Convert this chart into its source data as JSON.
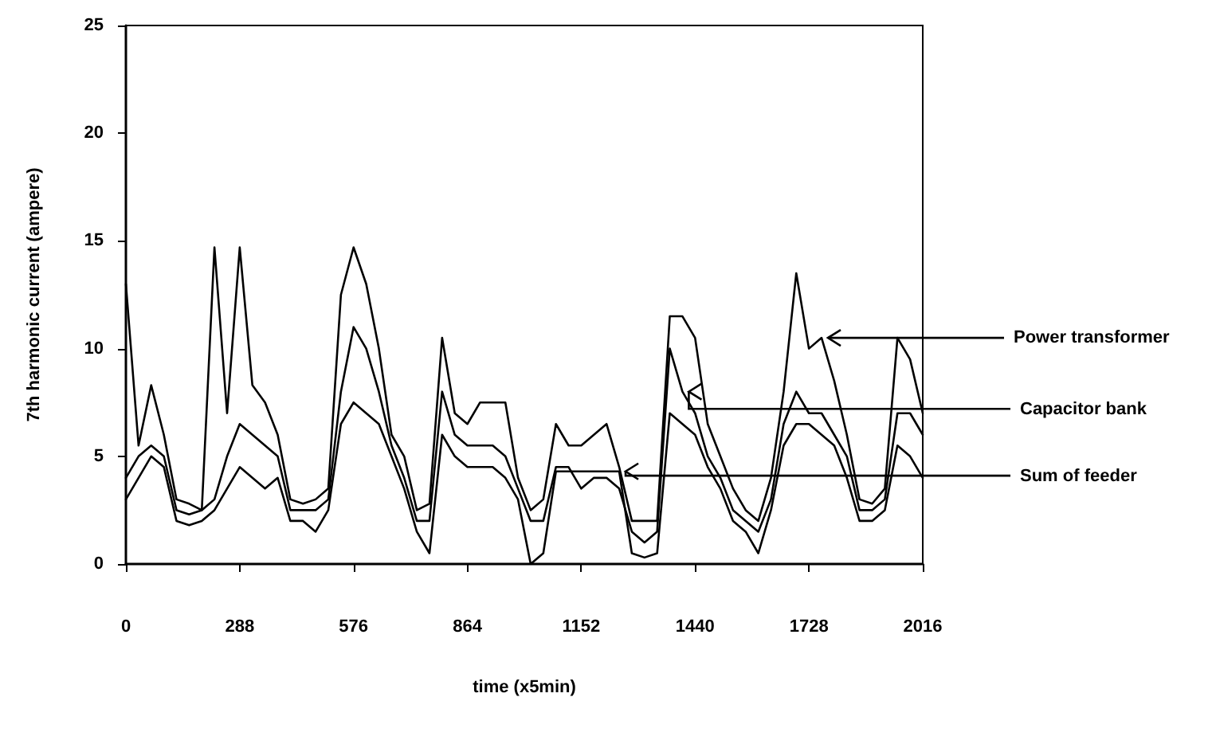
{
  "chart_data": {
    "type": "line",
    "xlabel": "time (x5min)",
    "ylabel": "7th harmonic current (ampere)",
    "xlim": [
      0,
      2016
    ],
    "xticks": [
      0,
      288,
      576,
      864,
      1152,
      1440,
      1728,
      2016
    ],
    "ylim": [
      0,
      25
    ],
    "yticks": [
      0,
      5,
      10,
      15,
      20,
      25
    ],
    "grid": false,
    "marker": "none",
    "x": [
      0,
      32,
      64,
      96,
      128,
      160,
      192,
      224,
      256,
      288,
      320,
      352,
      384,
      416,
      448,
      480,
      512,
      544,
      576,
      608,
      640,
      672,
      704,
      736,
      768,
      800,
      832,
      864,
      896,
      928,
      960,
      992,
      1024,
      1056,
      1088,
      1120,
      1152,
      1184,
      1216,
      1248,
      1280,
      1312,
      1344,
      1376,
      1408,
      1440,
      1472,
      1504,
      1536,
      1568,
      1600,
      1632,
      1664,
      1696,
      1728,
      1760,
      1792,
      1824,
      1856,
      1888,
      1920,
      1952,
      1984,
      2016
    ],
    "series": [
      {
        "name": "Power transformer",
        "color": "#000000",
        "values": [
          13,
          5.5,
          8.3,
          6,
          3,
          2.8,
          2.5,
          14.7,
          7,
          14.7,
          8.3,
          7.5,
          6,
          3,
          2.8,
          3,
          3.5,
          12.5,
          14.7,
          13,
          10,
          6,
          5,
          2.5,
          2.8,
          10.5,
          7,
          6.5,
          7.5,
          7.5,
          7.5,
          4,
          2.5,
          3,
          6.5,
          5.5,
          5.5,
          6,
          6.5,
          4.5,
          2,
          2,
          2,
          11.5,
          11.5,
          10.5,
          6.5,
          5,
          3.5,
          2.5,
          2,
          4,
          8,
          13.5,
          10,
          10.5,
          8.5,
          6,
          3,
          2.8,
          3.5,
          10.5,
          9.5,
          7
        ]
      },
      {
        "name": "Capacitor bank",
        "color": "#000000",
        "values": [
          4,
          5,
          5.5,
          5,
          2.5,
          2.3,
          2.5,
          3,
          5,
          6.5,
          6,
          5.5,
          5,
          2.5,
          2.5,
          2.5,
          3,
          8,
          11,
          10,
          8,
          5.5,
          4,
          2,
          2,
          8,
          6,
          5.5,
          5.5,
          5.5,
          5,
          3.5,
          2,
          2,
          4.5,
          4.5,
          3.5,
          4,
          4,
          3.5,
          1.5,
          1,
          1.5,
          10,
          8,
          7,
          5,
          4,
          2.5,
          2,
          1.5,
          3,
          6.5,
          8,
          7,
          7,
          6,
          5,
          2.5,
          2.5,
          3,
          7,
          7,
          6
        ]
      },
      {
        "name": "Sum of feeder",
        "color": "#000000",
        "values": [
          3,
          4,
          5,
          4.5,
          2,
          1.8,
          2,
          2.5,
          3.5,
          4.5,
          4,
          3.5,
          4,
          2,
          2,
          1.5,
          2.5,
          6.5,
          7.5,
          7,
          6.5,
          5,
          3.5,
          1.5,
          0.5,
          6,
          5,
          4.5,
          4.5,
          4.5,
          4,
          3,
          0,
          0.5,
          4.3,
          4.3,
          4.3,
          4.3,
          4.3,
          4.3,
          0.5,
          0.3,
          0.5,
          7,
          6.5,
          6,
          4.5,
          3.5,
          2,
          1.5,
          0.5,
          2.5,
          5.5,
          6.5,
          6.5,
          6,
          5.5,
          4,
          2,
          2,
          2.5,
          5.5,
          5,
          4
        ]
      }
    ]
  }
}
